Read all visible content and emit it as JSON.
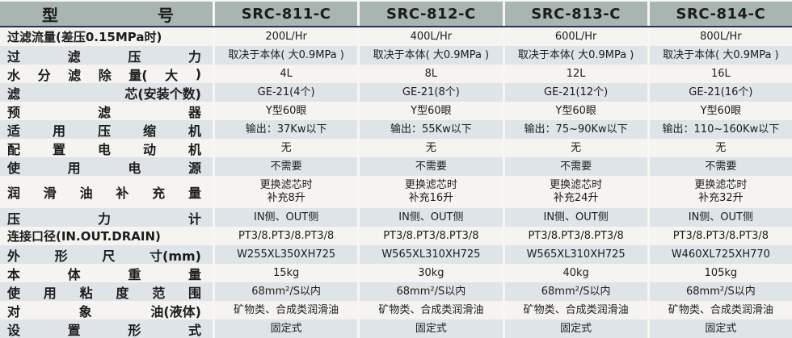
{
  "colors": {
    "header_bg": "#a9b5b3",
    "row_light": "#f5f4f0",
    "row_shaded": "#dee4e7",
    "divider_navy": "#22345a",
    "gap_white": "#f7f6f2",
    "text": "#1c1c1c"
  },
  "table": {
    "header": {
      "model_label_parts": [
        "型",
        "号"
      ],
      "columns": [
        "SRC-811-C",
        "SRC-812-C",
        "SRC-813-C",
        "SRC-814-C"
      ]
    },
    "rows": [
      {
        "label_parts": [
          "过滤流量(差压0.15MPa时)"
        ],
        "values": [
          "200L/Hr",
          "400L/Hr",
          "600L/Hr",
          "800L/Hr"
        ]
      },
      {
        "label_parts": [
          "过",
          "滤",
          "压",
          "力"
        ],
        "values": [
          "取决于本体( 大0.9MPa )",
          "取决于本体( 大0.9MPa )",
          "取决于本体( 大0.9MPa )",
          "取决于本体( 大0.9MPa )"
        ]
      },
      {
        "label_parts": [
          "水",
          "分",
          "滤",
          "除",
          "量(",
          "大",
          ")"
        ],
        "values": [
          "4L",
          "8L",
          "12L",
          "16L"
        ]
      },
      {
        "label_parts": [
          "滤",
          "芯(安装个数)"
        ],
        "values": [
          "GE-21(4个)",
          "GE-21(8个)",
          "GE-21(12个)",
          "GE-21(16个)"
        ]
      },
      {
        "label_parts": [
          "预",
          "滤",
          "器"
        ],
        "values": [
          "Y型60眼",
          "Y型60眼",
          "Y型60眼",
          "Y型60眼"
        ]
      },
      {
        "label_parts": [
          "适",
          "用",
          "压",
          "缩",
          "机"
        ],
        "values": [
          "输出：37Kw以下",
          "输出：55Kw以下",
          "输出：75~90Kw以下",
          "输出：110~160Kw以下"
        ]
      },
      {
        "label_parts": [
          "配",
          "置",
          "电",
          "动",
          "机"
        ],
        "values": [
          "无",
          "无",
          "无",
          "无"
        ]
      },
      {
        "label_parts": [
          "使",
          "用",
          "电",
          "源"
        ],
        "values": [
          "不需要",
          "不需要",
          "不需要",
          "不需要"
        ]
      },
      {
        "label_parts": [
          "润",
          "滑",
          "油",
          "补",
          "充",
          "量"
        ],
        "values": [
          "更换滤芯时\n补充8升",
          "更换滤芯时\n补充16升",
          "更换滤芯时\n补充24升",
          "更换滤芯时\n补充32升"
        ]
      },
      {
        "label_parts": [
          "压",
          "力",
          "计"
        ],
        "values": [
          "IN侧、OUT侧",
          "IN侧、OUT侧",
          "IN侧、OUT侧",
          "IN侧、OUT侧"
        ]
      },
      {
        "label_parts": [
          "连接口径(IN.OUT.DRAIN)"
        ],
        "values": [
          "PT3/8.PT3/8.PT3/8",
          "PT3/8.PT3/8.PT3/8",
          "PT3/8.PT3/8.PT3/8",
          "PT3/8.PT3/8.PT3/8"
        ]
      },
      {
        "label_parts": [
          "外",
          "形",
          "尺",
          "寸(mm)"
        ],
        "values": [
          "W255XL350XH725",
          "W565XL310XH725",
          "W565XL310XH725",
          "W460XL725XH770"
        ]
      },
      {
        "label_parts": [
          "本",
          "体",
          "重",
          "量"
        ],
        "values": [
          "15kg",
          "30kg",
          "40kg",
          "105kg"
        ]
      },
      {
        "label_parts": [
          "使",
          "用",
          "粘",
          "度",
          "范",
          "围"
        ],
        "values": [
          "68mm²/S以内",
          "68mm²/S以内",
          "68mm²/S以内",
          "68mm²/S以内"
        ]
      },
      {
        "label_parts": [
          "对",
          "象",
          "油(液体)"
        ],
        "values": [
          "矿物类、合成类润滑油",
          "矿物类、合成类润滑油",
          "矿物类、合成类润滑油",
          "矿物类、合成类润滑油"
        ]
      },
      {
        "label_parts": [
          "设",
          "置",
          "形",
          "式"
        ],
        "values": [
          "固定式",
          "固定式",
          "固定式",
          "固定式"
        ]
      }
    ]
  }
}
